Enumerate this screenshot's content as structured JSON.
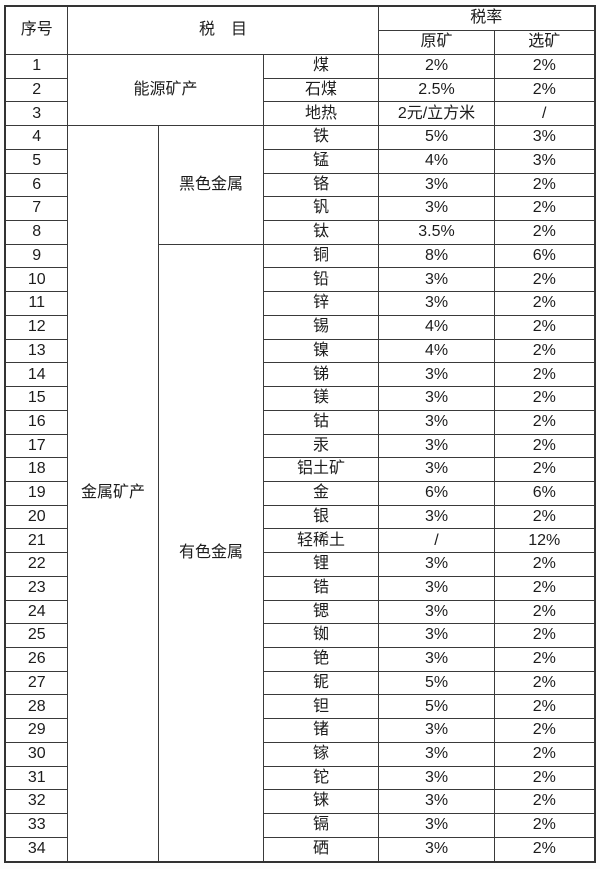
{
  "colors": {
    "border": "#333333",
    "text": "#1c1c1c",
    "background": "#ffffff"
  },
  "table": {
    "header": {
      "col_no": "序号",
      "col_item": "税　目",
      "col_rate": "税率",
      "col_raw": "原矿",
      "col_processed": "选矿"
    },
    "groups": [
      {
        "category": "能源矿产",
        "subgroups": [
          {
            "name": null,
            "rows": [
              {
                "no": "1",
                "item": "煤",
                "raw": "2%",
                "processed": "2%"
              },
              {
                "no": "2",
                "item": "石煤",
                "raw": "2.5%",
                "processed": "2%"
              },
              {
                "no": "3",
                "item": "地热",
                "raw": "2元/立方米",
                "processed": "/"
              }
            ]
          }
        ]
      },
      {
        "category": "金属矿产",
        "subgroups": [
          {
            "name": "黑色金属",
            "rows": [
              {
                "no": "4",
                "item": "铁",
                "raw": "5%",
                "processed": "3%"
              },
              {
                "no": "5",
                "item": "锰",
                "raw": "4%",
                "processed": "3%"
              },
              {
                "no": "6",
                "item": "铬",
                "raw": "3%",
                "processed": "2%"
              },
              {
                "no": "7",
                "item": "钒",
                "raw": "3%",
                "processed": "2%"
              },
              {
                "no": "8",
                "item": "钛",
                "raw": "3.5%",
                "processed": "2%"
              }
            ]
          },
          {
            "name": "有色金属",
            "rows": [
              {
                "no": "9",
                "item": "铜",
                "raw": "8%",
                "processed": "6%"
              },
              {
                "no": "10",
                "item": "铅",
                "raw": "3%",
                "processed": "2%"
              },
              {
                "no": "11",
                "item": "锌",
                "raw": "3%",
                "processed": "2%"
              },
              {
                "no": "12",
                "item": "锡",
                "raw": "4%",
                "processed": "2%"
              },
              {
                "no": "13",
                "item": "镍",
                "raw": "4%",
                "processed": "2%"
              },
              {
                "no": "14",
                "item": "锑",
                "raw": "3%",
                "processed": "2%"
              },
              {
                "no": "15",
                "item": "镁",
                "raw": "3%",
                "processed": "2%"
              },
              {
                "no": "16",
                "item": "钴",
                "raw": "3%",
                "processed": "2%"
              },
              {
                "no": "17",
                "item": "汞",
                "raw": "3%",
                "processed": "2%"
              },
              {
                "no": "18",
                "item": "铝土矿",
                "raw": "3%",
                "processed": "2%"
              },
              {
                "no": "19",
                "item": "金",
                "raw": "6%",
                "processed": "6%"
              },
              {
                "no": "20",
                "item": "银",
                "raw": "3%",
                "processed": "2%"
              },
              {
                "no": "21",
                "item": "轻稀土",
                "raw": "/",
                "processed": "12%"
              },
              {
                "no": "22",
                "item": "锂",
                "raw": "3%",
                "processed": "2%"
              },
              {
                "no": "23",
                "item": "锆",
                "raw": "3%",
                "processed": "2%"
              },
              {
                "no": "24",
                "item": "锶",
                "raw": "3%",
                "processed": "2%"
              },
              {
                "no": "25",
                "item": "铷",
                "raw": "3%",
                "processed": "2%"
              },
              {
                "no": "26",
                "item": "铯",
                "raw": "3%",
                "processed": "2%"
              },
              {
                "no": "27",
                "item": "铌",
                "raw": "5%",
                "processed": "2%"
              },
              {
                "no": "28",
                "item": "钽",
                "raw": "5%",
                "processed": "2%"
              },
              {
                "no": "29",
                "item": "锗",
                "raw": "3%",
                "processed": "2%"
              },
              {
                "no": "30",
                "item": "镓",
                "raw": "3%",
                "processed": "2%"
              },
              {
                "no": "31",
                "item": "铊",
                "raw": "3%",
                "processed": "2%"
              },
              {
                "no": "32",
                "item": "铼",
                "raw": "3%",
                "processed": "2%"
              },
              {
                "no": "33",
                "item": "镉",
                "raw": "3%",
                "processed": "2%"
              },
              {
                "no": "34",
                "item": "硒",
                "raw": "3%",
                "processed": "2%"
              }
            ]
          }
        ]
      }
    ]
  }
}
